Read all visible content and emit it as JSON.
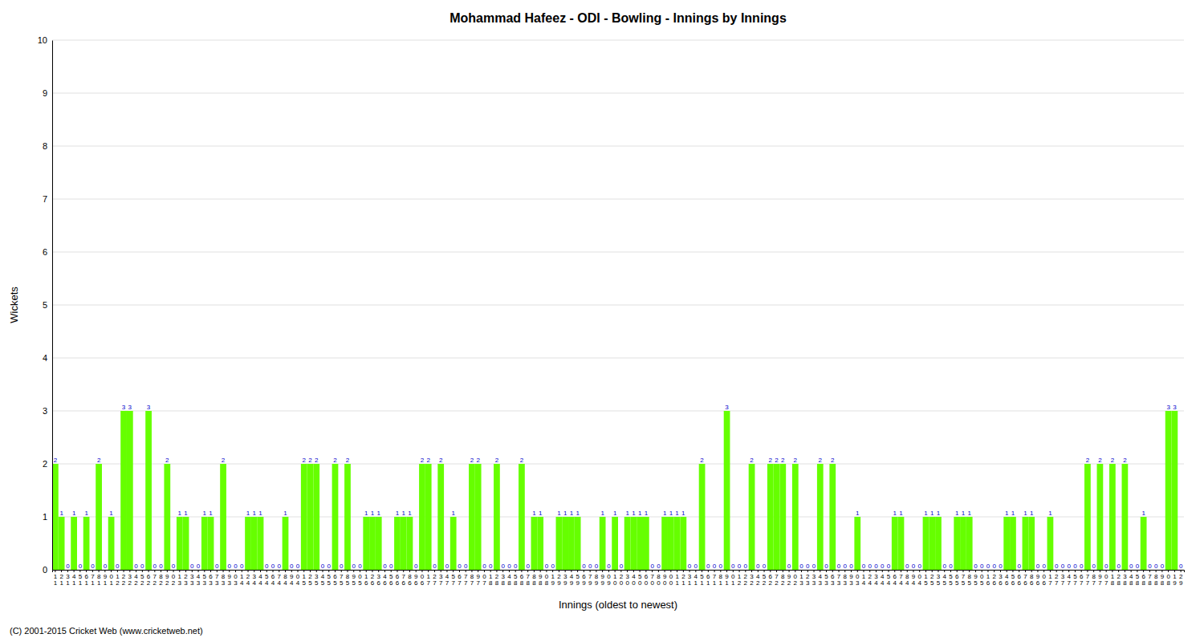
{
  "chart_data": {
    "type": "bar",
    "title": "Mohammad Hafeez - ODI - Bowling - Innings by Innings",
    "xlabel": "Innings (oldest to newest)",
    "ylabel": "Wickets",
    "ylim": [
      0,
      10
    ],
    "yticks": [
      0,
      1,
      2,
      3,
      4,
      5,
      6,
      7,
      8,
      9,
      10
    ],
    "color": "#66ff00",
    "grid": true,
    "data_labels": true,
    "annotations": [
      "(C) 2001-2015 Cricket Web (www.cricketweb.net)"
    ],
    "categories": [
      "1\n1",
      "2\n1",
      "3\n1",
      "4\n1",
      "5\n1",
      "6\n1",
      "7\n1",
      "8\n1",
      "9\n1",
      "0\n1",
      "1\n2",
      "2\n2",
      "3\n2",
      "4\n2",
      "5\n2",
      "6\n2",
      "7\n2",
      "8\n2",
      "9\n2",
      "0\n2",
      "1\n3",
      "2\n3",
      "3\n3",
      "4\n3",
      "5\n3",
      "6\n3",
      "7\n3",
      "8\n3",
      "9\n3",
      "0\n3",
      "1\n4",
      "2\n4",
      "3\n4",
      "4\n4",
      "5\n4",
      "6\n4",
      "7\n4",
      "8\n4",
      "9\n4",
      "0\n4",
      "1\n5",
      "2\n5",
      "3\n5",
      "4\n5",
      "5\n5",
      "6\n5",
      "7\n5",
      "8\n5",
      "9\n5",
      "0\n5",
      "1\n6",
      "2\n6",
      "3\n6",
      "4\n6",
      "5\n6",
      "6\n6",
      "7\n6",
      "8\n6",
      "9\n6",
      "0\n6",
      "1\n7",
      "2\n7",
      "3\n7",
      "4\n7",
      "5\n7",
      "6\n7",
      "7\n7",
      "8\n7",
      "9\n7",
      "0\n7",
      "1\n8",
      "2\n8",
      "3\n8",
      "4\n8",
      "5\n8",
      "6\n8",
      "7\n8",
      "8\n8",
      "9\n8",
      "0\n8",
      "1\n9",
      "2\n9",
      "3\n9",
      "4\n9",
      "5\n9",
      "6\n9",
      "7\n9",
      "8\n9",
      "9\n9",
      "0\n9",
      "1\n0",
      "2\n0",
      "3\n0",
      "4\n0",
      "5\n0",
      "6\n0",
      "7\n0",
      "8\n0",
      "9\n0",
      "0\n0",
      "1\n1",
      "2\n1",
      "3\n1",
      "4\n1",
      "5\n1",
      "6\n1",
      "7\n1",
      "8\n1",
      "9\n1",
      "0\n1",
      "1\n2",
      "2\n2",
      "3\n2",
      "4\n2",
      "5\n2",
      "6\n2",
      "7\n2",
      "8\n2",
      "9\n2",
      "0\n2",
      "1\n3",
      "2\n3",
      "3\n3",
      "4\n3",
      "5\n3",
      "6\n3",
      "7\n3",
      "8\n3",
      "9\n3",
      "0\n3",
      "1\n4",
      "2\n4",
      "3\n4",
      "4\n4",
      "5\n4",
      "6\n4",
      "7\n4",
      "8\n4",
      "9\n4",
      "0\n4",
      "1\n5",
      "2\n5",
      "3\n5",
      "4\n5",
      "5\n5",
      "6\n5",
      "7\n5",
      "8\n5",
      "9\n5",
      "0\n5",
      "1\n6",
      "2\n6",
      "3\n6",
      "4\n6",
      "5\n6",
      "6\n6",
      "7\n6",
      "8\n6",
      "9\n6",
      "0\n6",
      "1\n7",
      "2\n7",
      "3\n7",
      "4\n7",
      "5\n7",
      "6\n7",
      "7\n7",
      "8\n7",
      "9\n7",
      "0\n7",
      "1\n8",
      "2\n8",
      "3\n8",
      "4\n8",
      "5\n8",
      "6\n8",
      "7\n8",
      "8\n8",
      "9\n8",
      "0\n8",
      "1\n9",
      "2\n9"
    ],
    "values": [
      2,
      1,
      0,
      1,
      0,
      1,
      0,
      2,
      0,
      1,
      0,
      3,
      3,
      0,
      0,
      3,
      0,
      0,
      2,
      0,
      1,
      1,
      0,
      0,
      1,
      1,
      0,
      2,
      0,
      0,
      0,
      1,
      1,
      1,
      0,
      0,
      0,
      1,
      0,
      0,
      2,
      2,
      2,
      0,
      0,
      2,
      0,
      2,
      0,
      0,
      1,
      1,
      1,
      0,
      0,
      1,
      1,
      1,
      0,
      2,
      2,
      0,
      2,
      0,
      1,
      0,
      0,
      2,
      2,
      0,
      0,
      2,
      0,
      0,
      0,
      2,
      0,
      1,
      1,
      0,
      0,
      1,
      1,
      1,
      1,
      0,
      0,
      0,
      1,
      0,
      1,
      0,
      1,
      1,
      1,
      1,
      0,
      0,
      1,
      1,
      1,
      1,
      0,
      0,
      2,
      0,
      0,
      0,
      3,
      0,
      0,
      0,
      2,
      0,
      0,
      2,
      2,
      2,
      0,
      2,
      0,
      0,
      0,
      2,
      0,
      2,
      0,
      0,
      0,
      1,
      0,
      0,
      0,
      0,
      0,
      1,
      1,
      0,
      0,
      0,
      1,
      1,
      1,
      0,
      0,
      1,
      1,
      1,
      0,
      0,
      0,
      0,
      0,
      1,
      1,
      0,
      1,
      1,
      0,
      0,
      1,
      0,
      0,
      0,
      0,
      0,
      2,
      0,
      2,
      0,
      2,
      0,
      2,
      0,
      0,
      1,
      0,
      0,
      0,
      3,
      3,
      0
    ]
  }
}
